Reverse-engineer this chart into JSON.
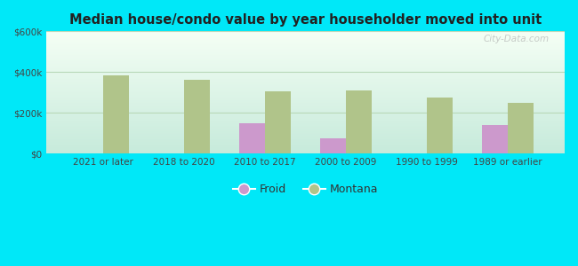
{
  "title": "Median house/condo value by year householder moved into unit",
  "categories": [
    "2021 or later",
    "2018 to 2020",
    "2010 to 2017",
    "2000 to 2009",
    "1990 to 1999",
    "1989 or earlier"
  ],
  "froid_values": [
    null,
    null,
    150000,
    75000,
    null,
    140000
  ],
  "montana_values": [
    385000,
    360000,
    305000,
    310000,
    275000,
    250000
  ],
  "froid_color": "#cc99cc",
  "montana_color": "#b0c48a",
  "background_outer": "#00e8f8",
  "ylim": [
    0,
    600000
  ],
  "yticks": [
    0,
    200000,
    400000,
    600000
  ],
  "ytick_labels": [
    "$0",
    "$200k",
    "$400k",
    "$600k"
  ],
  "bar_width": 0.32,
  "legend_labels": [
    "Froid",
    "Montana"
  ],
  "watermark": "City-Data.com"
}
